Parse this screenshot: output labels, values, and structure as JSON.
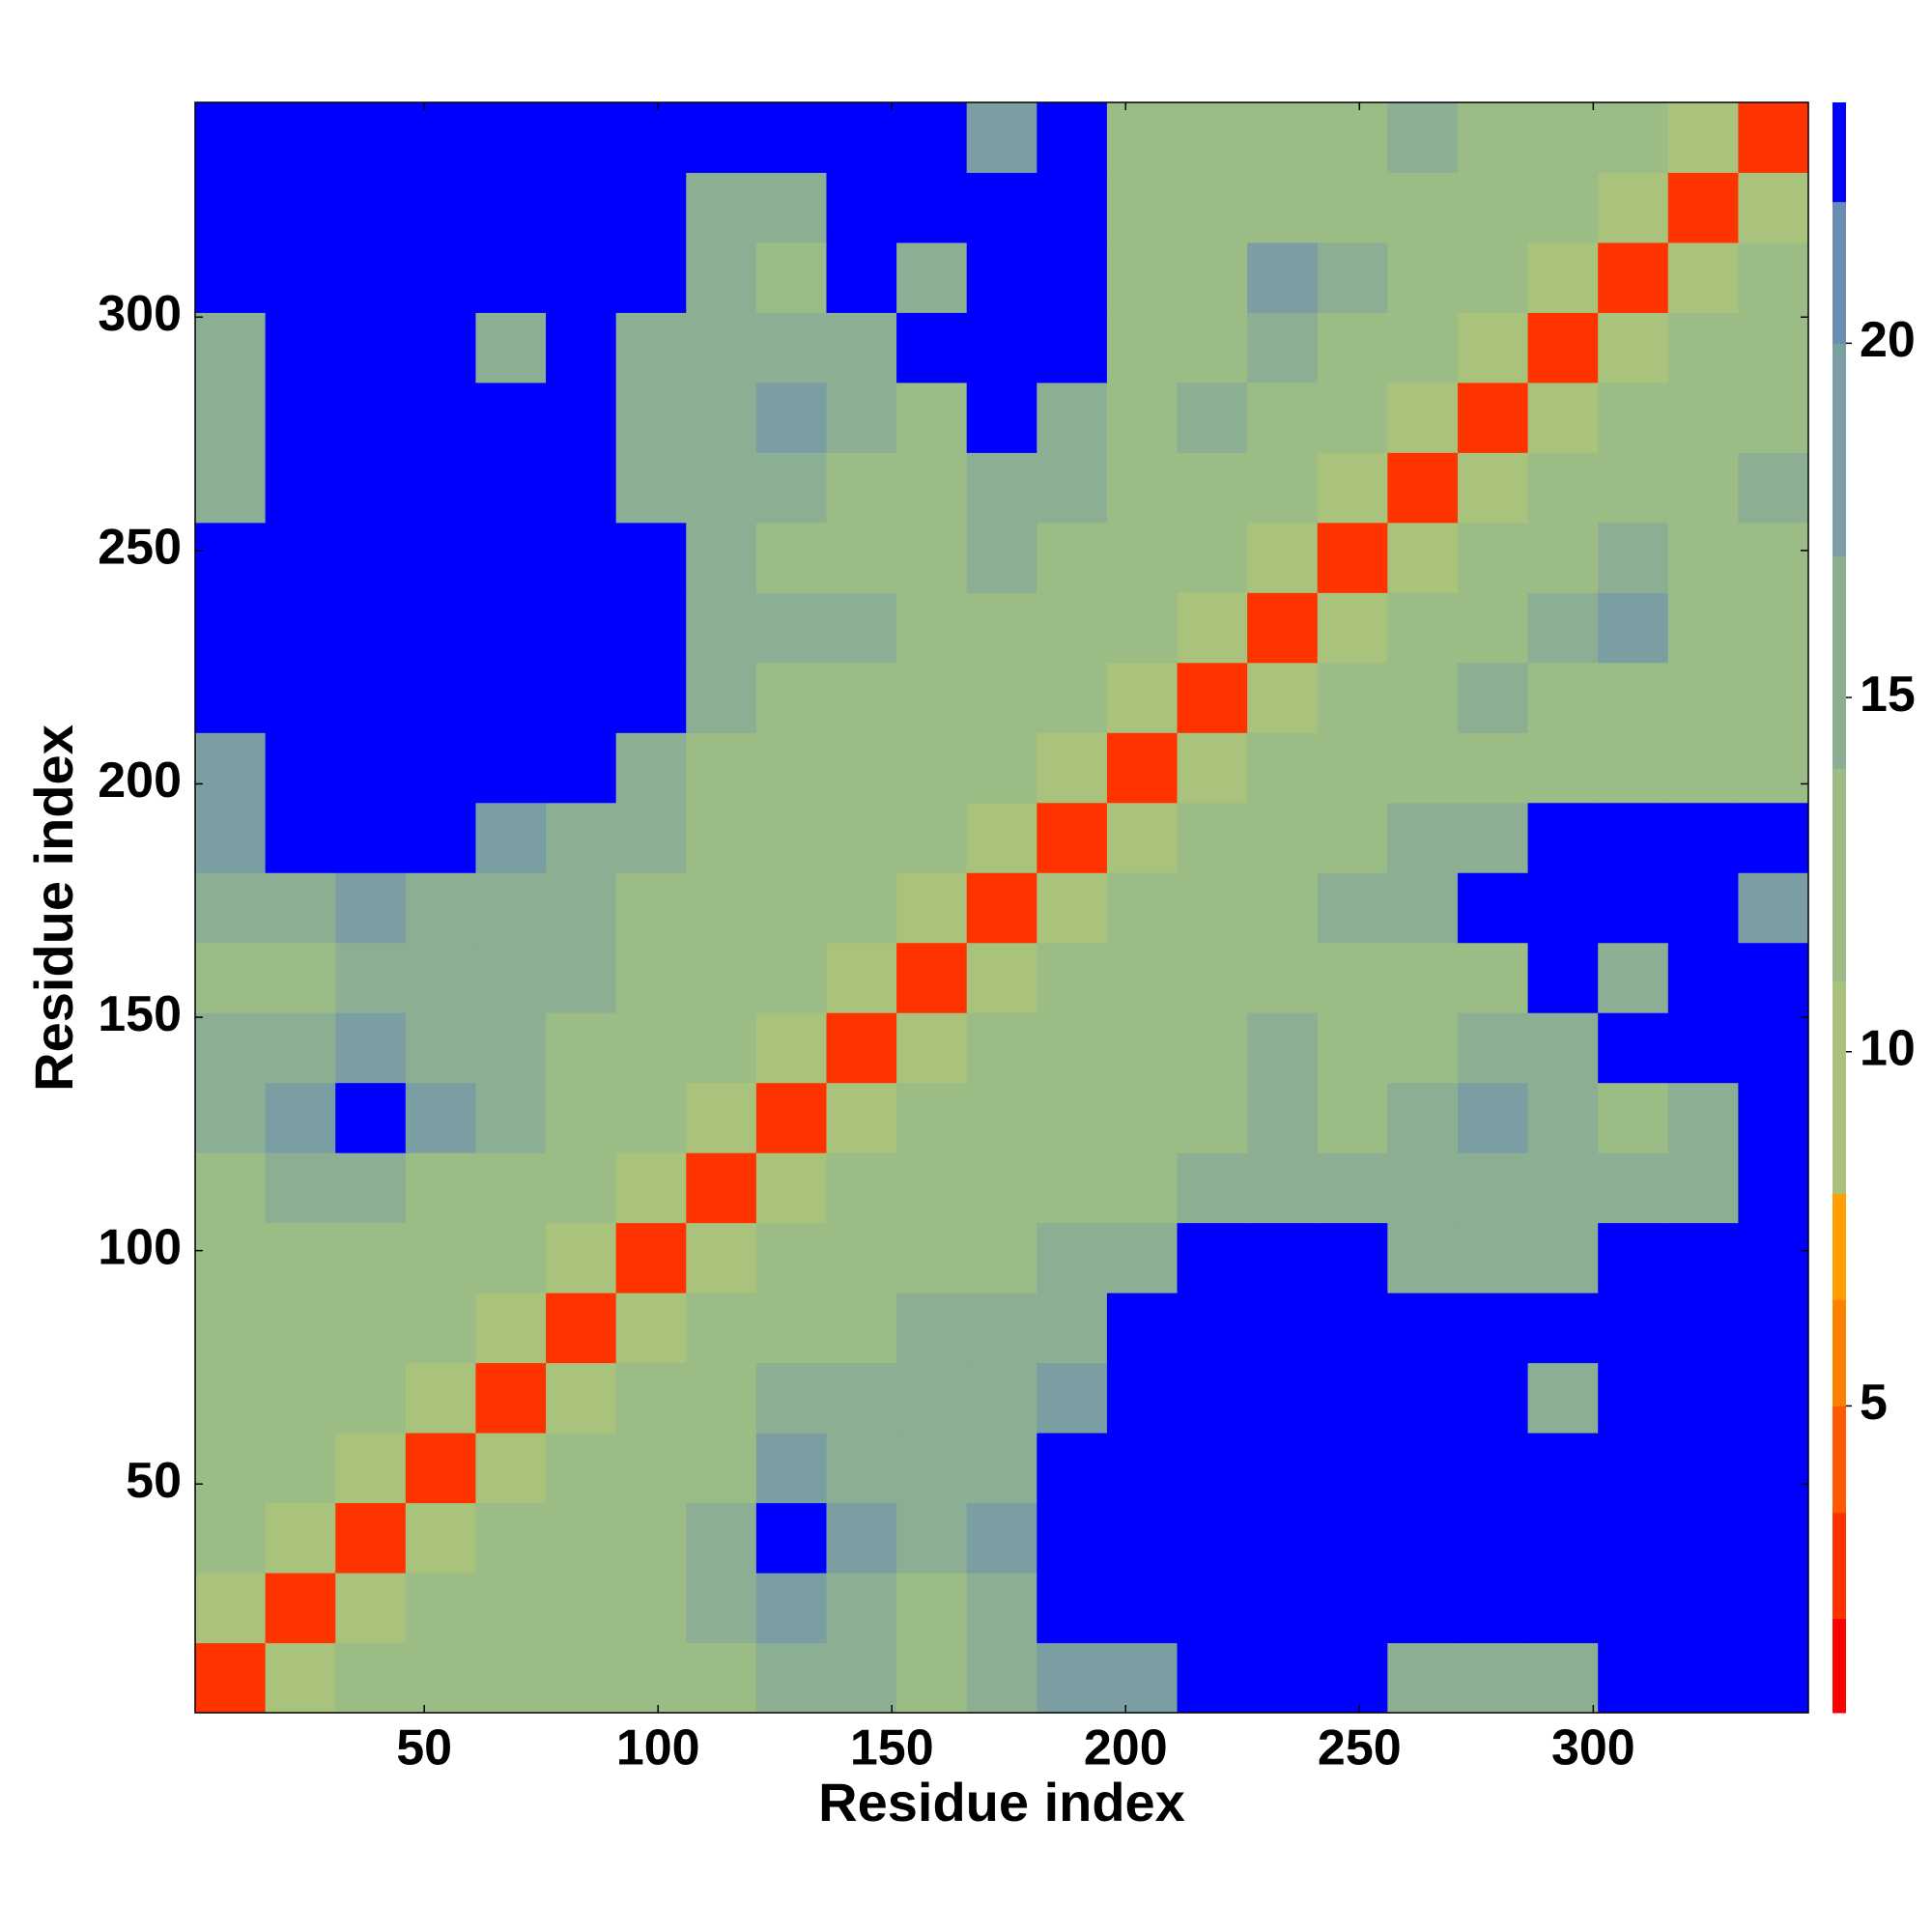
{
  "chart_data": {
    "type": "heatmap",
    "x_label": "Residue index",
    "y_label": "Residue index",
    "x_edges": [
      1,
      16,
      31,
      46,
      61,
      76,
      91,
      106,
      121,
      136,
      151,
      166,
      181,
      196,
      211,
      226,
      241,
      256,
      271,
      286,
      301,
      316,
      331,
      346
    ],
    "y_edges": [
      1,
      16,
      31,
      46,
      61,
      76,
      91,
      106,
      121,
      136,
      151,
      166,
      181,
      196,
      211,
      226,
      241,
      256,
      271,
      286,
      301,
      316,
      331,
      346
    ],
    "xlim": [
      1,
      346
    ],
    "ylim": [
      1,
      346
    ],
    "xticks": [
      50,
      100,
      150,
      200,
      250,
      300
    ],
    "yticks": [
      50,
      100,
      150,
      200,
      250,
      300
    ],
    "z": [
      [
        3,
        8,
        12,
        12,
        13,
        12,
        13,
        12,
        16,
        14,
        13,
        14,
        17,
        17,
        24,
        24,
        24,
        15,
        16,
        14,
        24,
        24,
        24
      ],
      [
        8,
        3,
        8,
        12,
        12,
        13,
        12,
        14,
        17,
        14,
        13,
        14,
        24,
        24,
        24,
        24,
        24,
        24,
        24,
        24,
        24,
        24,
        24
      ],
      [
        12,
        8,
        3,
        8,
        11,
        12,
        13,
        14,
        24,
        17,
        16,
        17,
        24,
        24,
        24,
        24,
        24,
        24,
        24,
        24,
        24,
        24,
        24
      ],
      [
        12,
        12,
        8,
        3,
        8,
        11,
        12,
        13,
        17,
        16,
        15,
        16,
        24,
        24,
        24,
        24,
        24,
        24,
        24,
        24,
        24,
        24,
        24
      ],
      [
        13,
        12,
        11,
        8,
        3,
        8,
        11,
        12,
        14,
        15,
        14,
        15,
        17,
        24,
        24,
        24,
        24,
        24,
        24,
        15,
        24,
        24,
        24
      ],
      [
        12,
        13,
        12,
        11,
        8,
        3,
        8,
        11,
        12,
        13,
        14,
        14,
        16,
        24,
        24,
        24,
        24,
        24,
        24,
        24,
        24,
        24,
        24
      ],
      [
        13,
        12,
        13,
        12,
        11,
        8,
        3,
        8,
        11,
        12,
        13,
        13,
        14,
        16,
        24,
        24,
        24,
        15,
        16,
        14,
        24,
        24,
        24
      ],
      [
        12,
        14,
        14,
        13,
        12,
        11,
        8,
        3,
        8,
        11,
        12,
        12,
        13,
        13,
        14,
        15,
        14,
        15,
        16,
        15,
        14,
        16,
        24
      ],
      [
        16,
        17,
        24,
        17,
        14,
        12,
        11,
        8,
        3,
        8,
        11,
        12,
        13,
        11,
        13,
        14,
        13,
        14,
        17,
        14,
        13,
        15,
        24
      ],
      [
        14,
        14,
        17,
        16,
        15,
        13,
        12,
        11,
        8,
        3,
        8,
        11,
        12,
        12,
        13,
        14,
        13,
        12,
        15,
        16,
        24,
        24,
        24
      ],
      [
        13,
        13,
        16,
        15,
        14,
        14,
        13,
        12,
        11,
        8,
        3,
        8,
        11,
        11,
        12,
        13,
        13,
        12,
        13,
        24,
        16,
        24,
        24
      ],
      [
        14,
        14,
        17,
        16,
        15,
        14,
        13,
        12,
        12,
        11,
        8,
        3,
        8,
        11,
        12,
        13,
        14,
        14,
        24,
        24,
        24,
        24,
        17
      ],
      [
        17,
        24,
        24,
        24,
        17,
        16,
        14,
        13,
        13,
        12,
        11,
        8,
        3,
        8,
        11,
        12,
        13,
        14,
        15,
        24,
        24,
        24,
        24
      ],
      [
        17,
        24,
        24,
        24,
        24,
        24,
        16,
        13,
        11,
        12,
        11,
        11,
        8,
        3,
        8,
        11,
        12,
        12,
        13,
        13,
        12,
        12,
        13
      ],
      [
        24,
        24,
        24,
        24,
        24,
        24,
        24,
        14,
        13,
        13,
        12,
        12,
        11,
        8,
        3,
        8,
        11,
        13,
        14,
        13,
        12,
        13,
        12
      ],
      [
        24,
        24,
        24,
        24,
        24,
        24,
        24,
        15,
        14,
        14,
        13,
        13,
        12,
        11,
        8,
        3,
        8,
        12,
        13,
        14,
        17,
        13,
        12
      ],
      [
        24,
        24,
        24,
        24,
        24,
        24,
        24,
        14,
        13,
        13,
        13,
        14,
        13,
        12,
        11,
        8,
        3,
        8,
        11,
        13,
        15,
        12,
        13
      ],
      [
        15,
        24,
        24,
        24,
        24,
        24,
        15,
        15,
        14,
        12,
        12,
        14,
        14,
        12,
        13,
        12,
        8,
        3,
        8,
        11,
        12,
        13,
        14
      ],
      [
        16,
        24,
        24,
        24,
        24,
        24,
        16,
        16,
        17,
        15,
        13,
        24,
        15,
        13,
        14,
        13,
        11,
        8,
        3,
        8,
        11,
        12,
        13
      ],
      [
        14,
        24,
        24,
        24,
        15,
        24,
        14,
        15,
        14,
        16,
        24,
        24,
        24,
        13,
        13,
        14,
        13,
        11,
        8,
        3,
        8,
        11,
        12
      ],
      [
        24,
        24,
        24,
        24,
        24,
        24,
        24,
        14,
        13,
        24,
        16,
        24,
        24,
        12,
        12,
        17,
        15,
        12,
        11,
        8,
        3,
        8,
        11
      ],
      [
        24,
        24,
        24,
        24,
        24,
        24,
        24,
        16,
        15,
        24,
        24,
        24,
        24,
        12,
        13,
        13,
        12,
        13,
        12,
        11,
        8,
        3,
        8
      ],
      [
        24,
        24,
        24,
        24,
        24,
        24,
        24,
        24,
        24,
        24,
        24,
        17,
        24,
        13,
        12,
        12,
        13,
        14,
        13,
        12,
        11,
        8,
        3
      ]
    ],
    "colorbar": {
      "lim": [
        0.67,
        23.4
      ],
      "ticks": [
        5,
        10,
        15,
        20
      ],
      "levels": [
        0.67,
        2,
        3.5,
        5,
        6.5,
        8,
        11,
        14,
        17,
        20,
        22,
        23.4
      ],
      "colors": [
        "#ff0000",
        "#ff3300",
        "#ff5a00",
        "#ff7f00",
        "#ff9f00",
        "#a9c27c",
        "#9cbc86",
        "#8cae92",
        "#7b9ea2",
        "#6a8eb2",
        "#0000ff"
      ]
    }
  }
}
